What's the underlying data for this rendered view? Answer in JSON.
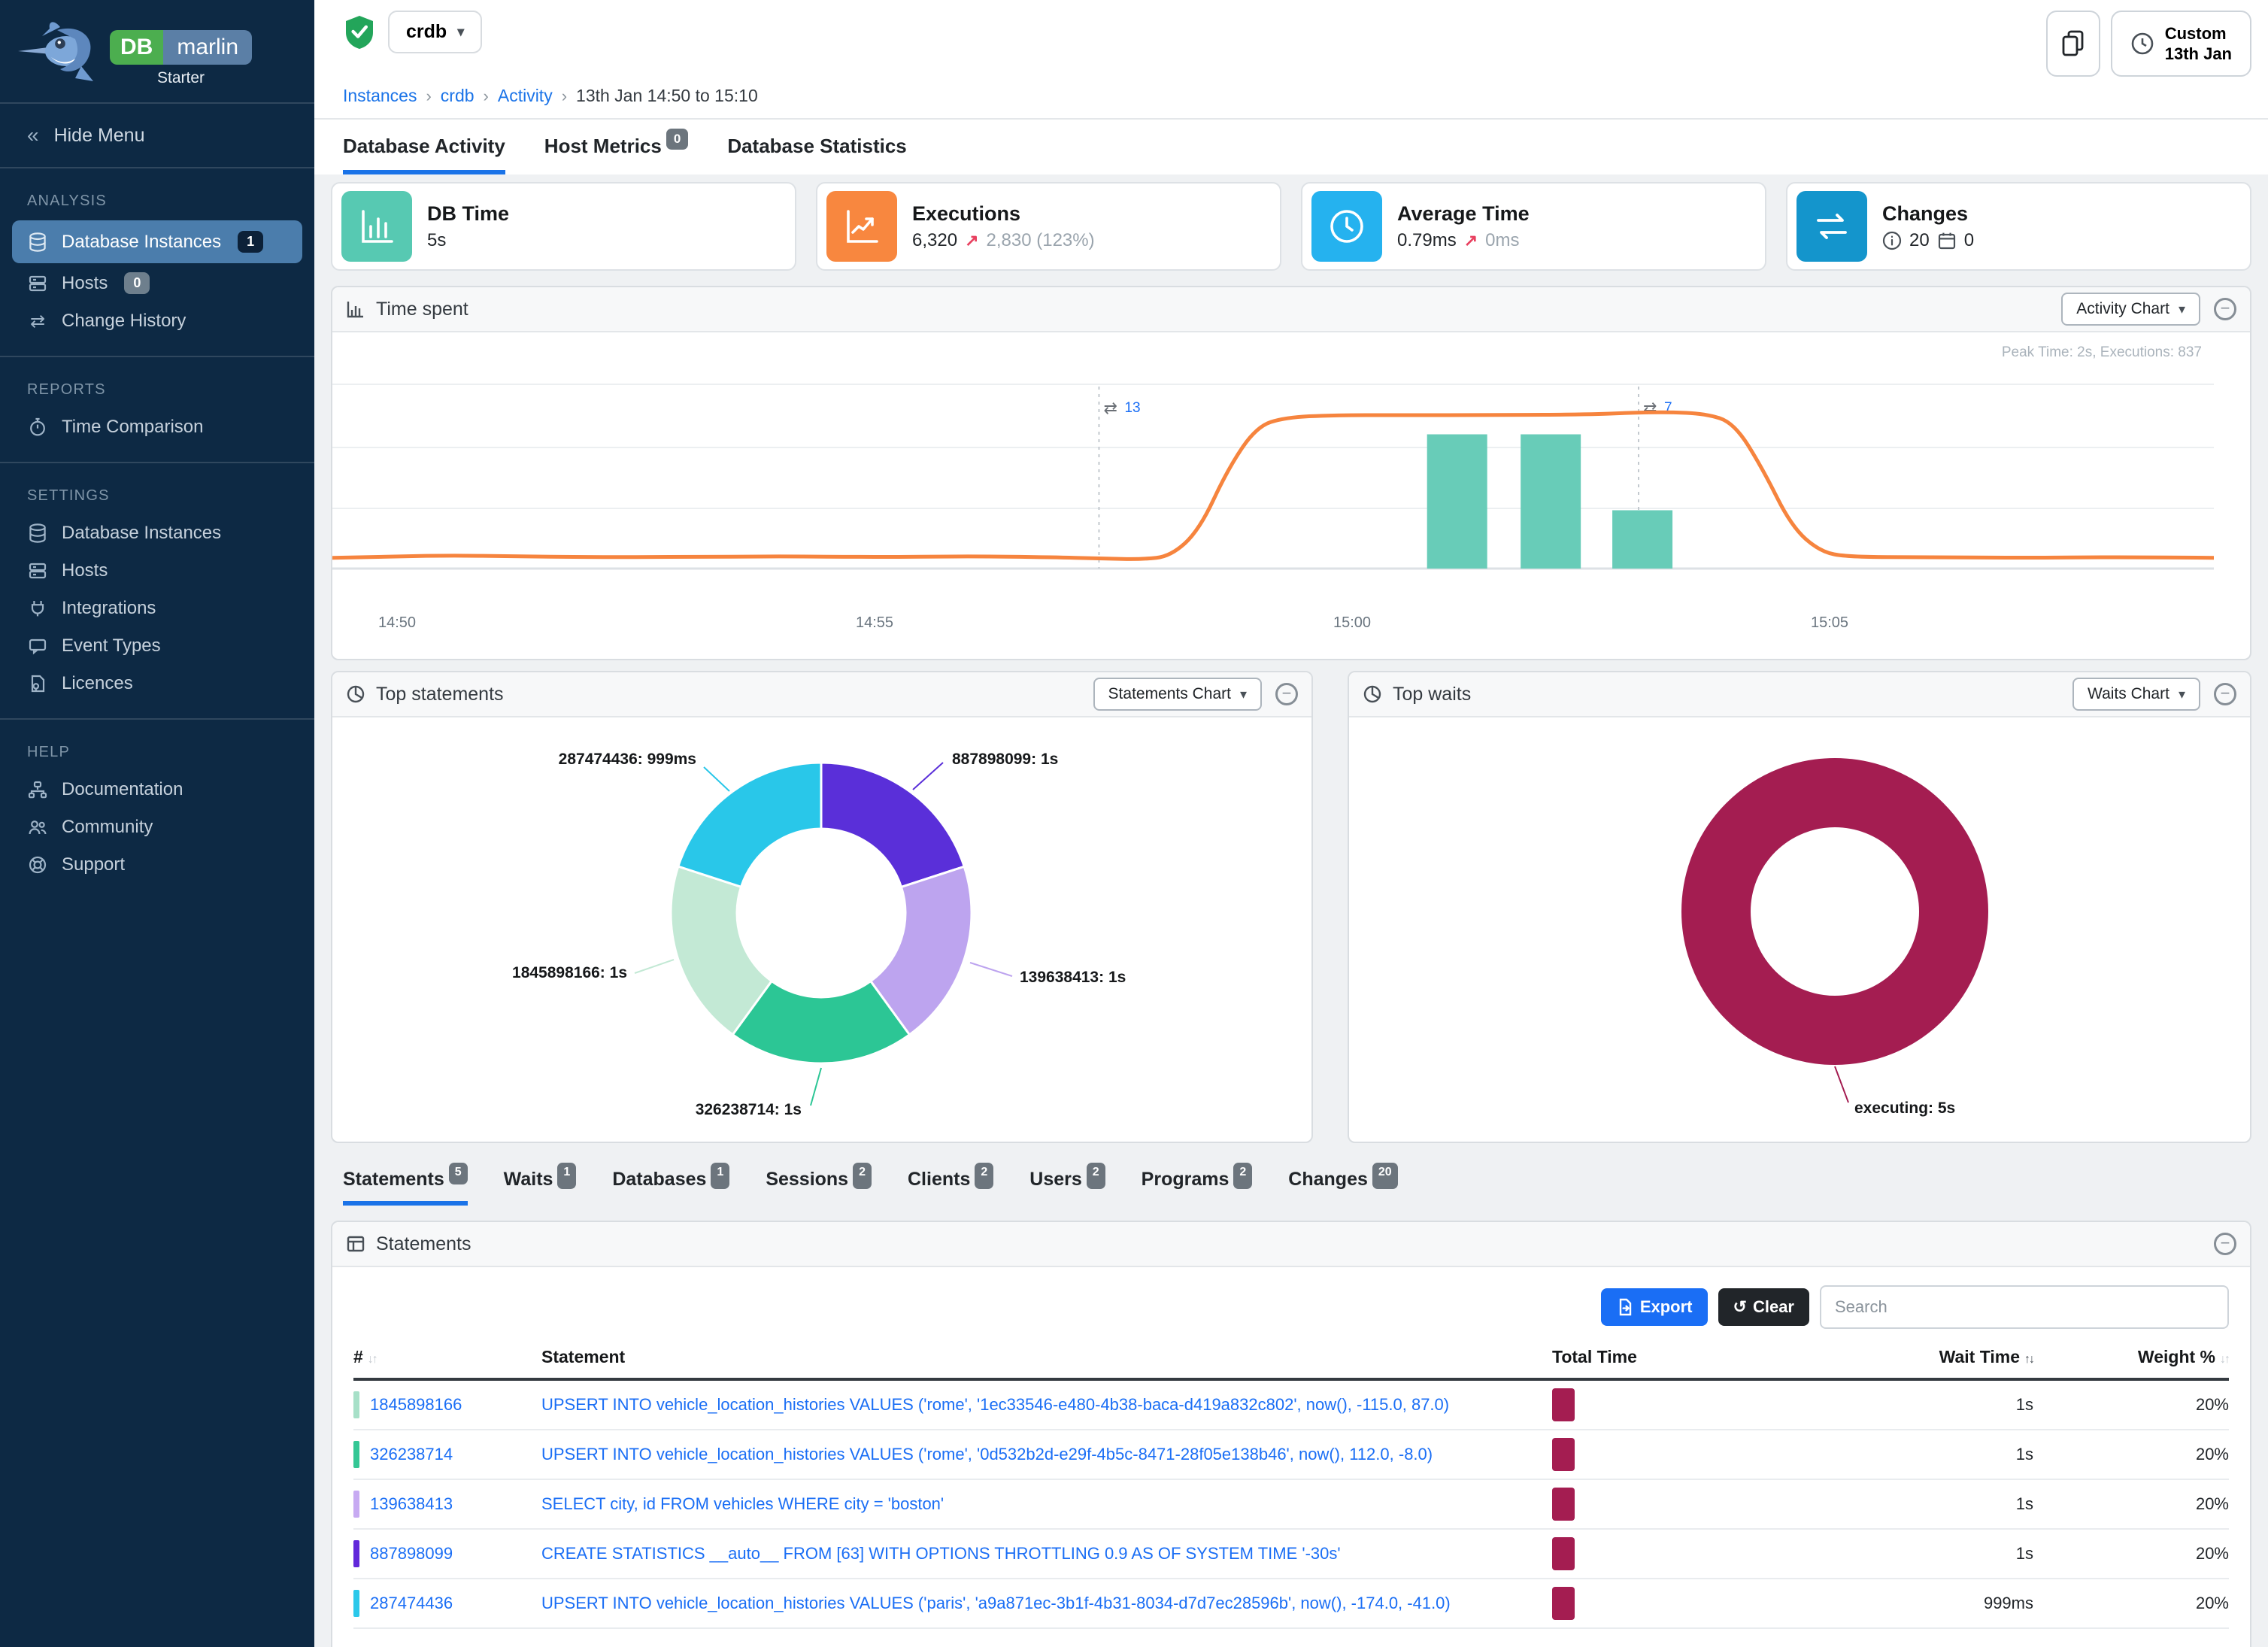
{
  "sidebar": {
    "brand": {
      "db": "DB",
      "name": "marlin",
      "plan": "Starter"
    },
    "hide_menu": "Hide Menu",
    "sections": [
      {
        "title": "ANALYSIS",
        "items": [
          {
            "label": "Database Instances",
            "badge": "1"
          },
          {
            "label": "Hosts",
            "badge": "0"
          },
          {
            "label": "Change History"
          }
        ]
      },
      {
        "title": "REPORTS",
        "items": [
          {
            "label": "Time Comparison"
          }
        ]
      },
      {
        "title": "SETTINGS",
        "items": [
          {
            "label": "Database Instances"
          },
          {
            "label": "Hosts"
          },
          {
            "label": "Integrations"
          },
          {
            "label": "Event Types"
          },
          {
            "label": "Licences"
          }
        ]
      },
      {
        "title": "HELP",
        "items": [
          {
            "label": "Documentation"
          },
          {
            "label": "Community"
          },
          {
            "label": "Support"
          }
        ]
      }
    ]
  },
  "topbar": {
    "instance": "crdb",
    "breadcrumb": {
      "links": [
        "Instances",
        "crdb",
        "Activity"
      ],
      "current": "13th Jan 14:50 to 15:10"
    },
    "time_button": {
      "line1": "Custom",
      "line2": "13th Jan"
    }
  },
  "page_tabs": [
    {
      "label": "Database Activity"
    },
    {
      "label": "Host Metrics",
      "badge": "0"
    },
    {
      "label": "Database Statistics"
    }
  ],
  "stat_cards": {
    "db_time": {
      "title": "DB Time",
      "value": "5s",
      "icon_color": "#57c9b2"
    },
    "executions": {
      "title": "Executions",
      "value": "6,320",
      "delta": "2,830 (123%)",
      "icon_color": "#f8873f"
    },
    "average_time": {
      "title": "Average Time",
      "value": "0.79ms",
      "delta": "0ms",
      "icon_color": "#25b2ef"
    },
    "changes": {
      "title": "Changes",
      "info_count": "20",
      "calendar_count": "0",
      "icon_color": "#1495cc"
    }
  },
  "time_spent": {
    "title": "Time spent",
    "view_button": "Activity Chart",
    "chart_data": {
      "type": "line+bar",
      "peak_note": "Peak Time: 2s, Executions: 837",
      "x_labels": [
        {
          "text": "14:50",
          "t": 0
        },
        {
          "text": "14:55",
          "t": 5
        },
        {
          "text": "15:00",
          "t": 10
        },
        {
          "text": "15:05",
          "t": 15
        }
      ],
      "y_unit": "seconds",
      "line_color": "#f6843e",
      "line_points": [
        [
          -0.68,
          0.14
        ],
        [
          0,
          0.16
        ],
        [
          0.6,
          0.17
        ],
        [
          1.2,
          0.16
        ],
        [
          2,
          0.15
        ],
        [
          3,
          0.15
        ],
        [
          4,
          0.16
        ],
        [
          5,
          0.15
        ],
        [
          6,
          0.16
        ],
        [
          6.8,
          0.15
        ],
        [
          7.4,
          0.13
        ],
        [
          7.8,
          0.12
        ],
        [
          8.1,
          0.16
        ],
        [
          8.4,
          0.5
        ],
        [
          8.7,
          1.3
        ],
        [
          9,
          1.85
        ],
        [
          9.3,
          1.97
        ],
        [
          9.8,
          2
        ],
        [
          10.5,
          2
        ],
        [
          11.5,
          2
        ],
        [
          12.5,
          2.01
        ],
        [
          12.9,
          2.03
        ],
        [
          13.3,
          2.04
        ],
        [
          13.7,
          2.02
        ],
        [
          14,
          1.9
        ],
        [
          14.3,
          1.3
        ],
        [
          14.6,
          0.55
        ],
        [
          14.9,
          0.22
        ],
        [
          15.2,
          0.15
        ],
        [
          16,
          0.15
        ],
        [
          17,
          0.14
        ],
        [
          18,
          0.15
        ],
        [
          19.05,
          0.14
        ]
      ],
      "bar_color": "#68ccb8",
      "bars": [
        {
          "t": 11.1,
          "value": 1.75
        },
        {
          "t": 12.08,
          "value": 1.75
        },
        {
          "t": 13.04,
          "value": 0.76
        }
      ],
      "annotations": [
        {
          "t": 7.35,
          "count": "13"
        },
        {
          "t": 13.0,
          "count": "7"
        }
      ]
    }
  },
  "top_statements": {
    "title": "Top statements",
    "view_button": "Statements Chart",
    "chart_data": {
      "type": "donut",
      "slices": [
        {
          "name": "887898099",
          "label": "887898099: 1s",
          "seconds": 1.0,
          "color": "#5a2fd9"
        },
        {
          "name": "139638413",
          "label": "139638413: 1s",
          "seconds": 1.0,
          "color": "#bda4ef"
        },
        {
          "name": "326238714",
          "label": "326238714: 1s",
          "seconds": 1.0,
          "color": "#2cc695"
        },
        {
          "name": "1845898166",
          "label": "1845898166: 1s",
          "seconds": 1.0,
          "color": "#c3e9d5"
        },
        {
          "name": "287474436",
          "label": "287474436: 999ms",
          "seconds": 0.999,
          "color": "#29c7e9"
        }
      ]
    }
  },
  "top_waits": {
    "title": "Top waits",
    "view_button": "Waits Chart",
    "chart_data": {
      "type": "donut",
      "slices": [
        {
          "name": "executing",
          "label": "executing: 5s",
          "seconds": 5,
          "color": "#a41d51"
        }
      ]
    }
  },
  "detail_tabs": [
    {
      "label": "Statements",
      "badge": "5"
    },
    {
      "label": "Waits",
      "badge": "1"
    },
    {
      "label": "Databases",
      "badge": "1"
    },
    {
      "label": "Sessions",
      "badge": "2"
    },
    {
      "label": "Clients",
      "badge": "2"
    },
    {
      "label": "Users",
      "badge": "2"
    },
    {
      "label": "Programs",
      "badge": "2"
    },
    {
      "label": "Changes",
      "badge": "20"
    }
  ],
  "statements_panel": {
    "title": "Statements",
    "export_label": "Export",
    "clear_label": "Clear",
    "search_placeholder": "Search",
    "columns": {
      "num": "#",
      "statement": "Statement",
      "total_time": "Total Time",
      "wait_time": "Wait Time",
      "weight": "Weight %"
    },
    "total_time_color": "#a41d51",
    "rows": [
      {
        "id": "1845898166",
        "chip_color": "#a7e0c8",
        "statement": "UPSERT INTO vehicle_location_histories VALUES ('rome', '1ec33546-e480-4b38-baca-d419a832c802', now(), -115.0, 87.0)",
        "wait_time": "1s",
        "weight": "20%"
      },
      {
        "id": "326238714",
        "chip_color": "#34c795",
        "statement": "UPSERT INTO vehicle_location_histories VALUES ('rome', '0d532b2d-e29f-4b5c-8471-28f05e138b46', now(), 112.0, -8.0)",
        "wait_time": "1s",
        "weight": "20%"
      },
      {
        "id": "139638413",
        "chip_color": "#c7aaf2",
        "statement": "SELECT city, id FROM vehicles WHERE city = 'boston'",
        "wait_time": "1s",
        "weight": "20%"
      },
      {
        "id": "887898099",
        "chip_color": "#6228da",
        "statement": "CREATE STATISTICS __auto__ FROM [63] WITH OPTIONS THROTTLING 0.9 AS OF SYSTEM TIME '-30s'",
        "wait_time": "1s",
        "weight": "20%"
      },
      {
        "id": "287474436",
        "chip_color": "#2bc8ea",
        "statement": "UPSERT INTO vehicle_location_histories VALUES ('paris', 'a9a871ec-3b1f-4b31-8034-d7d7ec28596b', now(), -174.0, -41.0)",
        "wait_time": "999ms",
        "weight": "20%"
      }
    ]
  }
}
